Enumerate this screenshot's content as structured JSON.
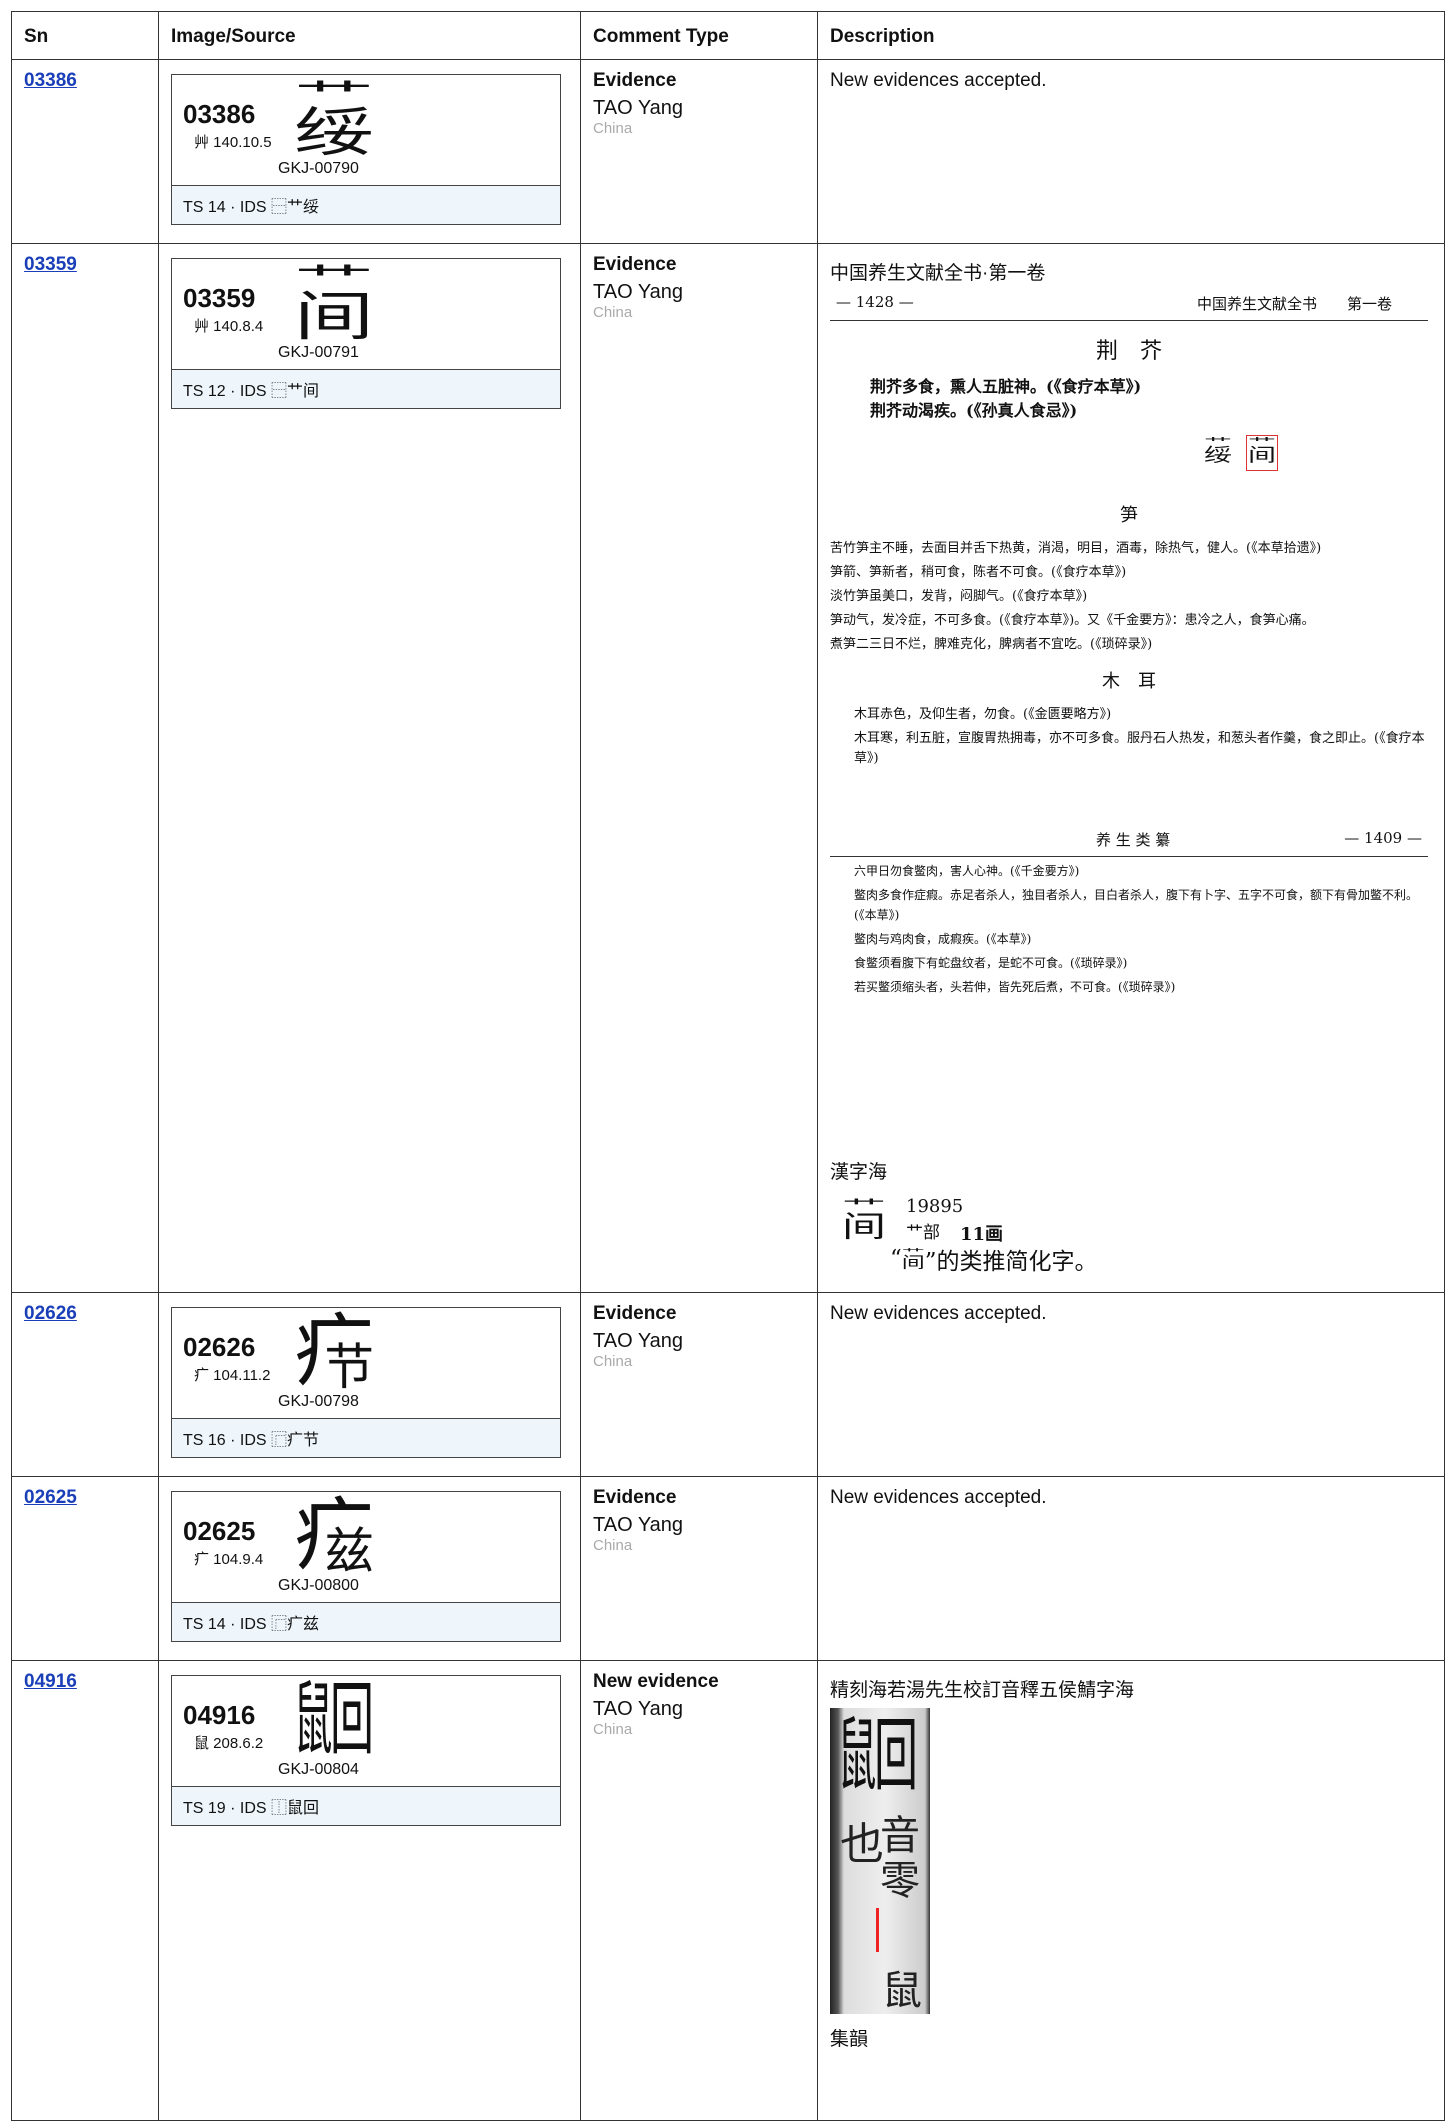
{
  "header": [
    "Sn",
    "Image/Source",
    "Comment Type",
    "Description"
  ],
  "rows": [
    {
      "sn": "03386",
      "card": {
        "sn": "03386",
        "radical": "艸 140.10.5",
        "source": "GKJ-00790",
        "footer": "TS 14 · IDS ⿱艹绥"
      },
      "comment_type": "Evidence",
      "author": "TAO Yang",
      "country": "China",
      "description": "New evidences accepted."
    },
    {
      "sn": "03359",
      "card": {
        "sn": "03359",
        "radical": "艸 140.8.4",
        "source": "GKJ-00791",
        "footer": "TS 12 · IDS ⿱艹间"
      },
      "comment_type": "Evidence",
      "author": "TAO Yang",
      "country": "China",
      "evidence": {
        "caption": "中国养生文献全书·第一卷",
        "scan": {
          "page_no": "— 1428 —",
          "running_head": "中国养生文献全书　　第一卷",
          "heading1": "荆　芥",
          "lines1": [
            "荆芥多食，熏人五脏神。(《食疗本草》)",
            "荆芥动渴疾。(《孙真人食忌》)"
          ],
          "heading2": "笋",
          "lines2": [
            "苦竹笋主不睡，去面目并舌下热黄，消渴，明目，酒毒，除热气，健人。(《本草拾遗》)",
            "笋箭、笋新者，稍可食，陈者不可食。(《食疗本草》)",
            "淡竹笋虽美口，发背，闷脚气。(《食疗本草》)",
            "笋动气，发冷症，不可多食。(《食疗本草》)。又《千金要方》：患冷之人，食笋心痛。",
            "煮笋二三日不烂，脾难克化，脾病者不宜吃。(《琐碎录》)"
          ],
          "heading3": "木　耳",
          "lines3": [
            "木耳赤色，及仰生者，勿食。(《金匮要略方》)",
            "木耳寒，利五脏，宣腹胃热拥毒，亦不可多食。服丹石人热发，和葱头者作羹，食之即止。(《食疗本草》)"
          ],
          "running_head2": "养 生 类 纂",
          "page_no2": "— 1409 —",
          "lines4": [
            "六甲日勿食鳖肉，害人心神。(《千金要方》)",
            "鳖肉多食作症瘕。赤足者杀人，独目者杀人，目白者杀人，腹下有卜字、五字不可食，额下有骨加鳖不利。(《本草》)",
            "鳖肉与鸡肉食，成瘕疾。(《本草》)",
            "食鳖须看腹下有蛇盘纹者，是蛇不可食。(《琐碎录》)",
            "若买鳖须缩头者，头若伸，皆先死后煮，不可食。(《琐碎录》)"
          ]
        },
        "caption2": "漢字海",
        "dict": {
          "number": "19895",
          "radical": "艹部",
          "strokes": "11画",
          "note_pre": "“",
          "note_post": "”的类推简化字。"
        }
      }
    },
    {
      "sn": "02626",
      "card": {
        "sn": "02626",
        "radical": "疒 104.11.2",
        "source": "GKJ-00798",
        "footer": "TS 16 · IDS ⿸疒节"
      },
      "comment_type": "Evidence",
      "author": "TAO Yang",
      "country": "China",
      "description": "New evidences accepted."
    },
    {
      "sn": "02625",
      "card": {
        "sn": "02625",
        "radical": "疒 104.9.4",
        "source": "GKJ-00800",
        "footer": "TS 14 · IDS ⿸疒兹"
      },
      "comment_type": "Evidence",
      "author": "TAO Yang",
      "country": "China",
      "description": "New evidences accepted."
    },
    {
      "sn": "04916",
      "card": {
        "sn": "04916",
        "radical": "鼠 208.6.2",
        "source": "GKJ-00804",
        "footer": "TS 19 · IDS ⿰鼠回"
      },
      "comment_type": "New evidence",
      "author": "TAO Yang",
      "country": "China",
      "evidence": {
        "caption": "精刻海若湯先生校訂音釋五侯鯖字海",
        "scan_chars": [
          "也",
          "音",
          "零",
          "鼠"
        ],
        "caption2": "集韻"
      }
    }
  ]
}
